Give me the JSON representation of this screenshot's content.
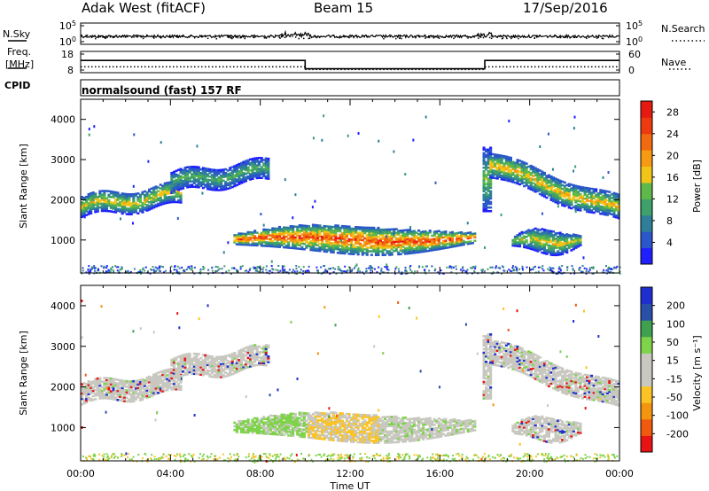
{
  "header": {
    "title": "Adak West (fitACF)",
    "beam": "Beam 15",
    "date": "17/Sep/2016"
  },
  "side_labels": {
    "nsky": "N.Sky",
    "nsearch": "N.Search",
    "freq": "Freq.",
    "freq_unit": "[MHz]",
    "nave": "Nave",
    "cpid": "CPID"
  },
  "cpid_text": "normalsound (fast) 157 RF",
  "colors": {
    "power": [
      "#1f1fff",
      "#2a57c9",
      "#2f7f9a",
      "#3ea06a",
      "#5fb84a",
      "#f2c418",
      "#f59a12",
      "#f26a10",
      "#ee3a10",
      "#e61a10"
    ],
    "velocity": [
      "#e81414",
      "#f05a0f",
      "#f5950f",
      "#fbc324",
      "#c8c8c0",
      "#c8c8c0",
      "#7ed34a",
      "#3fa04f",
      "#2a4fa8",
      "#1f2fcf"
    ]
  },
  "chart_data": [
    {
      "type": "line",
      "name": "N.Sky / N.Search",
      "yticks_left": [
        "10^5",
        "10^0"
      ],
      "yticks_right": [
        "10^5",
        "10^0"
      ]
    },
    {
      "type": "line",
      "name": "Freq / Nave",
      "yticks_left": [
        "18",
        "8"
      ],
      "yticks_right": [
        "60",
        "0"
      ],
      "freq_segments": [
        {
          "x0": 0,
          "x1": 10,
          "y": 14
        },
        {
          "x0": 10,
          "x1": 18,
          "y": 8.8
        },
        {
          "x0": 18,
          "x1": 24,
          "y": 14
        }
      ],
      "nave_segments": [
        {
          "x0": 0,
          "x1": 10,
          "y": 12
        },
        {
          "x0": 10,
          "x1": 18,
          "y": 2
        },
        {
          "x0": 18,
          "x1": 24,
          "y": 12
        }
      ]
    },
    {
      "type": "heatmap",
      "quantity": "power",
      "ylabel": "Slant Range [km]",
      "ylim": [
        180,
        4500
      ],
      "xlim": [
        0,
        24
      ],
      "yticks": [
        "1000",
        "2000",
        "3000",
        "4000"
      ],
      "colorbar_label": "Power [dB]",
      "colorbar_ticks": [
        "4",
        "8",
        "12",
        "16",
        "20",
        "24",
        "28"
      ],
      "colorbar_range": [
        0,
        30
      ]
    },
    {
      "type": "heatmap",
      "quantity": "velocity",
      "ylabel": "Slant Range [km]",
      "ylim": [
        180,
        4500
      ],
      "xlim": [
        0,
        24
      ],
      "yticks": [
        "1000",
        "2000",
        "3000",
        "4000"
      ],
      "xticks": [
        "00:00",
        "04:00",
        "08:00",
        "12:00",
        "16:00",
        "20:00",
        "00:00"
      ],
      "xlabel": "Time UT",
      "colorbar_label": "Velocity [m s⁻¹]",
      "colorbar_ticks": [
        "200",
        "100",
        "50",
        "15",
        "-15",
        "-50",
        "-100",
        "-200"
      ]
    }
  ],
  "echo_regions": [
    {
      "t0": 0,
      "t1": 4.5,
      "r0": 1500,
      "r1": 2400,
      "center": "ramp",
      "pmax": 20,
      "vclass": "low"
    },
    {
      "t0": 4.0,
      "t1": 8.3,
      "r0": 2100,
      "r1": 3000,
      "center": "ramp",
      "pmax": 14,
      "vclass": "low"
    },
    {
      "t0": 6.8,
      "t1": 17.5,
      "r0": 650,
      "r1": 1350,
      "center": "blob",
      "pmax": 30,
      "vclass": "mixed"
    },
    {
      "t0": 17.9,
      "t1": 18.3,
      "r0": 1700,
      "r1": 3300,
      "center": "thin",
      "pmax": 16,
      "vclass": "low"
    },
    {
      "t0": 18.2,
      "t1": 24,
      "r0": 1450,
      "r1": 3300,
      "center": "ramp2",
      "pmax": 22,
      "vclass": "low"
    },
    {
      "t0": 19.2,
      "t1": 22.3,
      "r0": 650,
      "r1": 1250,
      "center": "blob2",
      "pmax": 20,
      "vclass": "low"
    }
  ]
}
